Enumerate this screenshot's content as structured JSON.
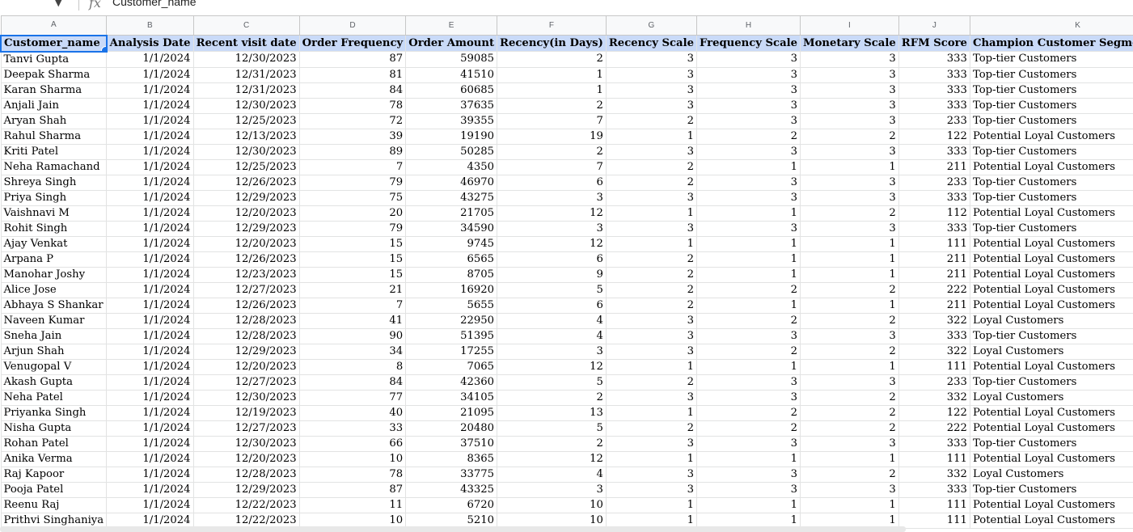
{
  "formula_bar": {
    "fx_symbol": "fx",
    "cell_value": "Customer_name",
    "name_box_caret": "▼"
  },
  "sheet": {
    "column_letters": [
      "A",
      "B",
      "C",
      "D",
      "E",
      "F",
      "G",
      "H",
      "I",
      "J",
      "K"
    ],
    "headers": [
      "Customer_name",
      "Analysis Date",
      "Recent visit date",
      "Order Frequency",
      "Order Amount",
      "Recency(in Days)",
      "Recency Scale",
      "Frequency Scale",
      "Monetary Scale",
      "RFM Score",
      "Champion Customer Segmentation"
    ],
    "rows": [
      [
        "Tanvi Gupta",
        "1/1/2024",
        "12/30/2023",
        "87",
        "59085",
        "2",
        "3",
        "3",
        "3",
        "333",
        "Top-tier Customers"
      ],
      [
        "Deepak Sharma",
        "1/1/2024",
        "12/31/2023",
        "81",
        "41510",
        "1",
        "3",
        "3",
        "3",
        "333",
        "Top-tier Customers"
      ],
      [
        "Karan Sharma",
        "1/1/2024",
        "12/31/2023",
        "84",
        "60685",
        "1",
        "3",
        "3",
        "3",
        "333",
        "Top-tier Customers"
      ],
      [
        "Anjali Jain",
        "1/1/2024",
        "12/30/2023",
        "78",
        "37635",
        "2",
        "3",
        "3",
        "3",
        "333",
        "Top-tier Customers"
      ],
      [
        "Aryan Shah",
        "1/1/2024",
        "12/25/2023",
        "72",
        "39355",
        "7",
        "2",
        "3",
        "3",
        "233",
        "Top-tier Customers"
      ],
      [
        "Rahul Sharma",
        "1/1/2024",
        "12/13/2023",
        "39",
        "19190",
        "19",
        "1",
        "2",
        "2",
        "122",
        "Potential Loyal Customers"
      ],
      [
        "Kriti Patel",
        "1/1/2024",
        "12/30/2023",
        "89",
        "50285",
        "2",
        "3",
        "3",
        "3",
        "333",
        "Top-tier Customers"
      ],
      [
        "Neha Ramachand",
        "1/1/2024",
        "12/25/2023",
        "7",
        "4350",
        "7",
        "2",
        "1",
        "1",
        "211",
        "Potential Loyal Customers"
      ],
      [
        "Shreya Singh",
        "1/1/2024",
        "12/26/2023",
        "79",
        "46970",
        "6",
        "2",
        "3",
        "3",
        "233",
        "Top-tier Customers"
      ],
      [
        "Priya Singh",
        "1/1/2024",
        "12/29/2023",
        "75",
        "43275",
        "3",
        "3",
        "3",
        "3",
        "333",
        "Top-tier Customers"
      ],
      [
        "Vaishnavi M",
        "1/1/2024",
        "12/20/2023",
        "20",
        "21705",
        "12",
        "1",
        "1",
        "2",
        "112",
        "Potential Loyal Customers"
      ],
      [
        "Rohit Singh",
        "1/1/2024",
        "12/29/2023",
        "79",
        "34590",
        "3",
        "3",
        "3",
        "3",
        "333",
        "Top-tier Customers"
      ],
      [
        "Ajay Venkat",
        "1/1/2024",
        "12/20/2023",
        "15",
        "9745",
        "12",
        "1",
        "1",
        "1",
        "111",
        "Potential Loyal Customers"
      ],
      [
        "Arpana P",
        "1/1/2024",
        "12/26/2023",
        "15",
        "6565",
        "6",
        "2",
        "1",
        "1",
        "211",
        "Potential Loyal Customers"
      ],
      [
        "Manohar Joshy",
        "1/1/2024",
        "12/23/2023",
        "15",
        "8705",
        "9",
        "2",
        "1",
        "1",
        "211",
        "Potential Loyal Customers"
      ],
      [
        "Alice Jose",
        "1/1/2024",
        "12/27/2023",
        "21",
        "16920",
        "5",
        "2",
        "2",
        "2",
        "222",
        "Potential Loyal Customers"
      ],
      [
        "Abhaya S Shankar",
        "1/1/2024",
        "12/26/2023",
        "7",
        "5655",
        "6",
        "2",
        "1",
        "1",
        "211",
        "Potential Loyal Customers"
      ],
      [
        "Naveen Kumar",
        "1/1/2024",
        "12/28/2023",
        "41",
        "22950",
        "4",
        "3",
        "2",
        "2",
        "322",
        "Loyal Customers"
      ],
      [
        "Sneha Jain",
        "1/1/2024",
        "12/28/2023",
        "90",
        "51395",
        "4",
        "3",
        "3",
        "3",
        "333",
        "Top-tier Customers"
      ],
      [
        "Arjun Shah",
        "1/1/2024",
        "12/29/2023",
        "34",
        "17255",
        "3",
        "3",
        "2",
        "2",
        "322",
        "Loyal Customers"
      ],
      [
        "Venugopal V",
        "1/1/2024",
        "12/20/2023",
        "8",
        "7065",
        "12",
        "1",
        "1",
        "1",
        "111",
        "Potential Loyal Customers"
      ],
      [
        "Akash Gupta",
        "1/1/2024",
        "12/27/2023",
        "84",
        "42360",
        "5",
        "2",
        "3",
        "3",
        "233",
        "Top-tier Customers"
      ],
      [
        "Neha Patel",
        "1/1/2024",
        "12/30/2023",
        "77",
        "34105",
        "2",
        "3",
        "3",
        "2",
        "332",
        "Loyal Customers"
      ],
      [
        "Priyanka Singh",
        "1/1/2024",
        "12/19/2023",
        "40",
        "21095",
        "13",
        "1",
        "2",
        "2",
        "122",
        "Potential Loyal Customers"
      ],
      [
        "Nisha Gupta",
        "1/1/2024",
        "12/27/2023",
        "33",
        "20480",
        "5",
        "2",
        "2",
        "2",
        "222",
        "Potential Loyal Customers"
      ],
      [
        "Rohan Patel",
        "1/1/2024",
        "12/30/2023",
        "66",
        "37510",
        "2",
        "3",
        "3",
        "3",
        "333",
        "Top-tier Customers"
      ],
      [
        "Anika Verma",
        "1/1/2024",
        "12/20/2023",
        "10",
        "8365",
        "12",
        "1",
        "1",
        "1",
        "111",
        "Potential Loyal Customers"
      ],
      [
        "Raj Kapoor",
        "1/1/2024",
        "12/28/2023",
        "78",
        "33775",
        "4",
        "3",
        "3",
        "2",
        "332",
        "Loyal Customers"
      ],
      [
        "Pooja Patel",
        "1/1/2024",
        "12/29/2023",
        "87",
        "43325",
        "3",
        "3",
        "3",
        "3",
        "333",
        "Top-tier Customers"
      ],
      [
        "Reenu Raj",
        "1/1/2024",
        "12/22/2023",
        "11",
        "6720",
        "10",
        "1",
        "1",
        "1",
        "111",
        "Potential Loyal Customers"
      ],
      [
        "Prithvi Singhaniya",
        "1/1/2024",
        "12/22/2023",
        "10",
        "5210",
        "10",
        "1",
        "1",
        "1",
        "111",
        "Potential Loyal Customers"
      ]
    ]
  },
  "colors": {
    "header_fill": "#c9daf8",
    "selection": "#1a73e8",
    "gridline": "#e2e3e3"
  }
}
